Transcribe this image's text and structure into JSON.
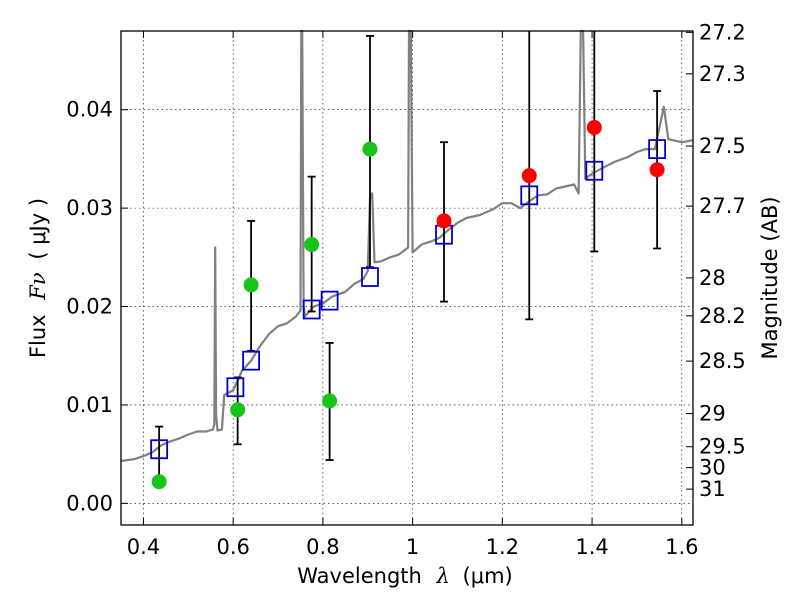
{
  "chart_data": {
    "type": "scatter",
    "xlabel": {
      "text": "Wavelength",
      "symbol": "λ",
      "unit": "(μm)"
    },
    "ylabel": {
      "text": "Flux",
      "symbol": "Fν",
      "unit": "( μJy )"
    },
    "y2label": "Magnitude (AB)",
    "xlim": [
      0.35,
      1.625
    ],
    "ylim": [
      -0.0022,
      0.048
    ],
    "xticks": [
      {
        "v": 0.4,
        "label": "0.4"
      },
      {
        "v": 0.6,
        "label": "0.6"
      },
      {
        "v": 0.8,
        "label": "0.8"
      },
      {
        "v": 1.0,
        "label": "1"
      },
      {
        "v": 1.2,
        "label": "1.2"
      },
      {
        "v": 1.4,
        "label": "1.4"
      },
      {
        "v": 1.6,
        "label": "1.6"
      }
    ],
    "yticks": [
      {
        "v": 0.0,
        "label": "0.00"
      },
      {
        "v": 0.01,
        "label": "0.01"
      },
      {
        "v": 0.02,
        "label": "0.02"
      },
      {
        "v": 0.03,
        "label": "0.03"
      },
      {
        "v": 0.04,
        "label": "0.04"
      }
    ],
    "y2ticks": [
      {
        "label": "27.2",
        "mag": 27.2
      },
      {
        "label": "27.3",
        "mag": 27.3
      },
      {
        "label": "27.5",
        "mag": 27.5
      },
      {
        "label": "27.7",
        "mag": 27.7
      },
      {
        "label": "28",
        "mag": 28.0
      },
      {
        "label": "28.2",
        "mag": 28.2
      },
      {
        "label": "28.5",
        "mag": 28.5
      },
      {
        "label": "29",
        "mag": 29.0
      },
      {
        "label": "29.5",
        "mag": 29.5
      },
      {
        "label": "30",
        "mag": 30.0
      },
      {
        "label": "31",
        "mag": 31.0
      }
    ],
    "grid": true,
    "colors": {
      "model": "#808080",
      "box": "#0000cc",
      "green": "#19c319",
      "red": "#ff0000",
      "error": "#000000"
    },
    "model_spectrum": [
      [
        0.35,
        0.0043
      ],
      [
        0.38,
        0.0045
      ],
      [
        0.4,
        0.0048
      ],
      [
        0.42,
        0.0052
      ],
      [
        0.44,
        0.0059
      ],
      [
        0.46,
        0.0063
      ],
      [
        0.48,
        0.0066
      ],
      [
        0.5,
        0.007
      ],
      [
        0.52,
        0.0073
      ],
      [
        0.54,
        0.0073
      ],
      [
        0.555,
        0.0075
      ],
      [
        0.558,
        0.008
      ],
      [
        0.56,
        0.026
      ],
      [
        0.562,
        0.009
      ],
      [
        0.565,
        0.0074
      ],
      [
        0.575,
        0.0075
      ],
      [
        0.58,
        0.011
      ],
      [
        0.6,
        0.0115
      ],
      [
        0.62,
        0.0135
      ],
      [
        0.64,
        0.0145
      ],
      [
        0.66,
        0.016
      ],
      [
        0.68,
        0.0172
      ],
      [
        0.7,
        0.018
      ],
      [
        0.72,
        0.0183
      ],
      [
        0.74,
        0.019
      ],
      [
        0.75,
        0.0196
      ],
      [
        0.752,
        0.048
      ],
      [
        0.754,
        0.048
      ],
      [
        0.757,
        0.02
      ],
      [
        0.76,
        0.019
      ],
      [
        0.78,
        0.02
      ],
      [
        0.8,
        0.0203
      ],
      [
        0.82,
        0.021
      ],
      [
        0.85,
        0.0215
      ],
      [
        0.87,
        0.0223
      ],
      [
        0.89,
        0.0228
      ],
      [
        0.9,
        0.0236
      ],
      [
        0.905,
        0.031
      ],
      [
        0.91,
        0.0315
      ],
      [
        0.915,
        0.0245
      ],
      [
        0.93,
        0.0246
      ],
      [
        0.95,
        0.025
      ],
      [
        0.97,
        0.0253
      ],
      [
        0.99,
        0.026
      ],
      [
        0.992,
        0.048
      ],
      [
        0.996,
        0.048
      ],
      [
        1.0,
        0.0255
      ],
      [
        1.02,
        0.0263
      ],
      [
        1.04,
        0.0266
      ],
      [
        1.06,
        0.027
      ],
      [
        1.08,
        0.0278
      ],
      [
        1.1,
        0.0285
      ],
      [
        1.12,
        0.029
      ],
      [
        1.15,
        0.0293
      ],
      [
        1.18,
        0.0299
      ],
      [
        1.2,
        0.0305
      ],
      [
        1.22,
        0.0305
      ],
      [
        1.24,
        0.03
      ],
      [
        1.26,
        0.0307
      ],
      [
        1.28,
        0.0313
      ],
      [
        1.3,
        0.0314
      ],
      [
        1.32,
        0.032
      ],
      [
        1.34,
        0.0322
      ],
      [
        1.36,
        0.0324
      ],
      [
        1.37,
        0.0315
      ],
      [
        1.375,
        0.048
      ],
      [
        1.38,
        0.048
      ],
      [
        1.385,
        0.033
      ],
      [
        1.4,
        0.0335
      ],
      [
        1.42,
        0.034
      ],
      [
        1.45,
        0.0347
      ],
      [
        1.48,
        0.0352
      ],
      [
        1.5,
        0.0357
      ],
      [
        1.52,
        0.036
      ],
      [
        1.54,
        0.036
      ],
      [
        1.56,
        0.0403
      ],
      [
        1.57,
        0.037
      ],
      [
        1.6,
        0.0367
      ],
      [
        1.625,
        0.0369
      ]
    ],
    "model_photometry": [
      {
        "x": 0.435,
        "y": 0.0055
      },
      {
        "x": 0.605,
        "y": 0.0118
      },
      {
        "x": 0.64,
        "y": 0.0145
      },
      {
        "x": 0.775,
        "y": 0.0197
      },
      {
        "x": 0.815,
        "y": 0.0206
      },
      {
        "x": 0.905,
        "y": 0.023
      },
      {
        "x": 1.07,
        "y": 0.0273
      },
      {
        "x": 1.26,
        "y": 0.0313
      },
      {
        "x": 1.405,
        "y": 0.0338
      },
      {
        "x": 1.545,
        "y": 0.036
      }
    ],
    "observed_green": [
      {
        "x": 0.435,
        "y": 0.0022,
        "err_lo": 0.0022,
        "err_hi": 0.0078
      },
      {
        "x": 0.61,
        "y": 0.0095,
        "err_lo": 0.006,
        "err_hi": 0.0128
      },
      {
        "x": 0.64,
        "y": 0.0222,
        "err_lo": 0.0155,
        "err_hi": 0.0287
      },
      {
        "x": 0.775,
        "y": 0.0263,
        "err_lo": 0.0195,
        "err_hi": 0.0332
      },
      {
        "x": 0.815,
        "y": 0.0104,
        "err_lo": 0.0044,
        "err_hi": 0.0163
      },
      {
        "x": 0.905,
        "y": 0.036,
        "err_lo": 0.024,
        "err_hi": 0.0475
      }
    ],
    "observed_red": [
      {
        "x": 1.07,
        "y": 0.0287,
        "err_lo": 0.0205,
        "err_hi": 0.0367
      },
      {
        "x": 1.26,
        "y": 0.0333,
        "err_lo": 0.0187,
        "err_hi": 0.048
      },
      {
        "x": 1.405,
        "y": 0.0382,
        "err_lo": 0.0256,
        "err_hi": 0.048
      },
      {
        "x": 1.545,
        "y": 0.0339,
        "err_lo": 0.0259,
        "err_hi": 0.0419
      }
    ]
  }
}
